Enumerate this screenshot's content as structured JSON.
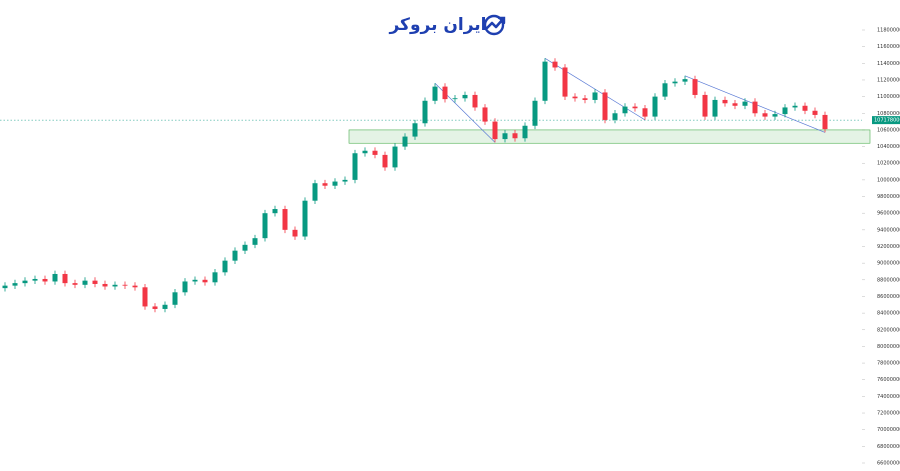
{
  "logo": "ایران بروکر",
  "chart_data": {
    "type": "candlestick",
    "up_color": "#089981",
    "down_color": "#f23645",
    "open": [
      87000000,
      87300000,
      87600000,
      87900000,
      88100000,
      87800000,
      88700000,
      87600000,
      87400000,
      87900000,
      87500000,
      87200000,
      87400000,
      87300000,
      87100000,
      84800000,
      84500000,
      85000000,
      86500000,
      87800000,
      88000000,
      87700000,
      88900000,
      90300000,
      91500000,
      92200000,
      93000000,
      96000000,
      96500000,
      94000000,
      93200000,
      97500000,
      99600000,
      99300000,
      99800000,
      100000000,
      103200000,
      103500000,
      103000000,
      101500000,
      104000000,
      105200000,
      106800000,
      109500000,
      111200000,
      109700000,
      109800000,
      110200000,
      108700000,
      107000000,
      104900000,
      105600000,
      105000000,
      106500000,
      109500000,
      114200000,
      113500000,
      110000000,
      109800000,
      109600000,
      110500000,
      107200000,
      108000000,
      108800000,
      108600000,
      107600000,
      110000000,
      111600000,
      111800000,
      112100000,
      110200000,
      107600000,
      109600000,
      109200000,
      108900000,
      109400000,
      108000000,
      107600000,
      107900000,
      108700000,
      108900000,
      108300000,
      107800000
    ],
    "high": [
      87700000,
      88000000,
      88300000,
      88500000,
      88500000,
      89100000,
      89100000,
      88000000,
      88300000,
      88300000,
      87900000,
      87800000,
      87800000,
      87700000,
      87500000,
      85200000,
      85400000,
      86900000,
      88200000,
      88400000,
      88400000,
      89300000,
      90700000,
      91900000,
      92600000,
      93400000,
      96400000,
      96900000,
      96900000,
      94400000,
      97900000,
      100000000,
      100000000,
      100200000,
      100400000,
      103600000,
      103900000,
      103900000,
      103400000,
      104400000,
      105600000,
      107200000,
      109900000,
      111600000,
      111600000,
      110200000,
      110600000,
      110600000,
      109100000,
      107400000,
      106000000,
      106000000,
      106900000,
      109900000,
      114600000,
      114600000,
      113900000,
      110400000,
      110200000,
      110900000,
      110900000,
      108400000,
      109200000,
      109200000,
      109000000,
      110400000,
      112000000,
      112200000,
      112500000,
      112500000,
      110600000,
      110000000,
      110000000,
      109600000,
      109800000,
      109800000,
      108400000,
      108300000,
      109100000,
      109300000,
      109300000,
      108700000,
      108200000
    ],
    "low": [
      86600000,
      86900000,
      87200000,
      87500000,
      87400000,
      87400000,
      87200000,
      87000000,
      87000000,
      87100000,
      86800000,
      86800000,
      86900000,
      86700000,
      84400000,
      84100000,
      84100000,
      84600000,
      86100000,
      87400000,
      87300000,
      87300000,
      88500000,
      89900000,
      91100000,
      91800000,
      92600000,
      95600000,
      93600000,
      92800000,
      92800000,
      97100000,
      98900000,
      98900000,
      99400000,
      99600000,
      102800000,
      102600000,
      101100000,
      101100000,
      103600000,
      104800000,
      106400000,
      109100000,
      109300000,
      109300000,
      109400000,
      108300000,
      106600000,
      104500000,
      104500000,
      104600000,
      104600000,
      106100000,
      109100000,
      113100000,
      109600000,
      109400000,
      109200000,
      109200000,
      106800000,
      106800000,
      107600000,
      108200000,
      107200000,
      107200000,
      109600000,
      111200000,
      111400000,
      109800000,
      107200000,
      107200000,
      108800000,
      108500000,
      108500000,
      107600000,
      107200000,
      107200000,
      107500000,
      108300000,
      107900000,
      107400000,
      105700000
    ],
    "close": [
      87300000,
      87600000,
      87900000,
      88100000,
      87800000,
      88700000,
      87600000,
      87400000,
      87900000,
      87500000,
      87200000,
      87400000,
      87300000,
      87100000,
      84800000,
      84500000,
      85000000,
      86500000,
      87800000,
      88000000,
      87700000,
      88900000,
      90300000,
      91500000,
      92200000,
      93000000,
      96000000,
      96500000,
      94000000,
      93200000,
      97500000,
      99600000,
      99300000,
      99800000,
      100000000,
      103200000,
      103500000,
      103000000,
      101500000,
      104000000,
      105200000,
      106800000,
      109500000,
      111200000,
      109700000,
      109800000,
      110200000,
      108700000,
      107000000,
      104900000,
      105600000,
      105000000,
      106500000,
      109500000,
      114200000,
      113500000,
      110000000,
      109800000,
      109600000,
      110500000,
      107200000,
      108000000,
      108800000,
      108600000,
      107600000,
      110000000,
      111600000,
      111800000,
      112100000,
      110200000,
      107600000,
      109600000,
      109200000,
      108900000,
      109400000,
      108000000,
      107600000,
      107900000,
      108700000,
      108900000,
      108300000,
      107800000,
      106100000
    ],
    "current_price": {
      "value": 107178000,
      "label": "107178000"
    },
    "support_zone": [
      104400000,
      106000000
    ],
    "trendlines": [
      {
        "x": [
          43,
          49
        ],
        "y": [
          111600000,
          104500000
        ]
      },
      {
        "x": [
          54,
          64
        ],
        "y": [
          114600000,
          107200000
        ]
      },
      {
        "x": [
          68,
          82
        ],
        "y": [
          112500000,
          105700000
        ]
      }
    ],
    "ylim": [
      66000000,
      118000000
    ],
    "yticks": [
      66000000,
      68000000,
      70000000,
      72000000,
      74000000,
      76000000,
      78000000,
      80000000,
      82000000,
      84000000,
      86000000,
      88000000,
      90000000,
      92000000,
      94000000,
      96000000,
      98000000,
      100000000,
      102000000,
      104000000,
      106000000,
      108000000,
      110000000,
      112000000,
      114000000,
      116000000,
      118000000
    ]
  }
}
